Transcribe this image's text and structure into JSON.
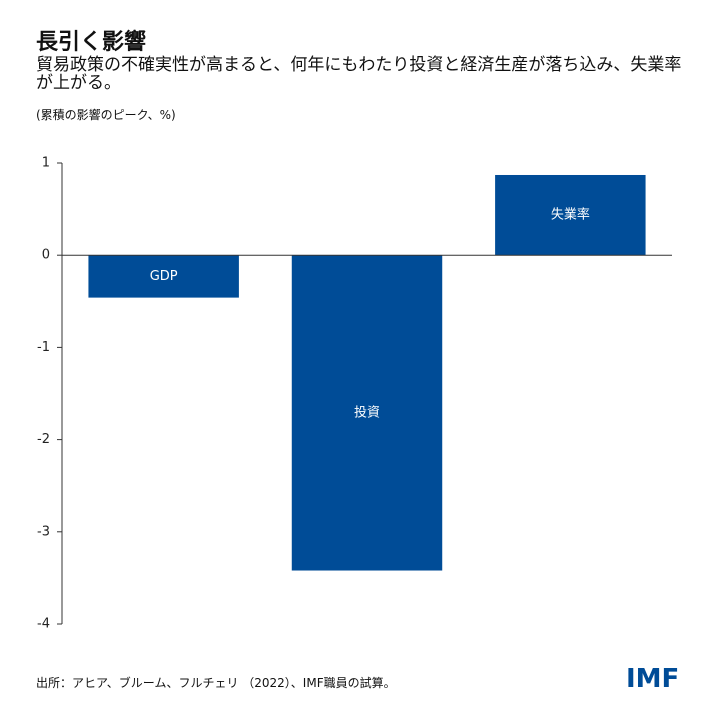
{
  "chart_data": {
    "type": "bar",
    "title": "長引く影響",
    "subtitle": "貿易政策の不確実性が高まると、何年にもわたり投資と経済生産が落ち込み、失業率が上がる。",
    "note": "(累積の影響のピーク、%)",
    "categories": [
      "GDP",
      "投資",
      "失業率"
    ],
    "values": [
      -0.46,
      -3.42,
      0.87
    ],
    "color": "#004c97",
    "ylim": [
      -4,
      1
    ],
    "yticks": [
      -4,
      -3,
      -2,
      -1,
      0,
      1
    ],
    "source": "出所：アヒア、ブルーム、フルチェリ （2022）、IMF職員の試算。",
    "logo": "IMF"
  }
}
